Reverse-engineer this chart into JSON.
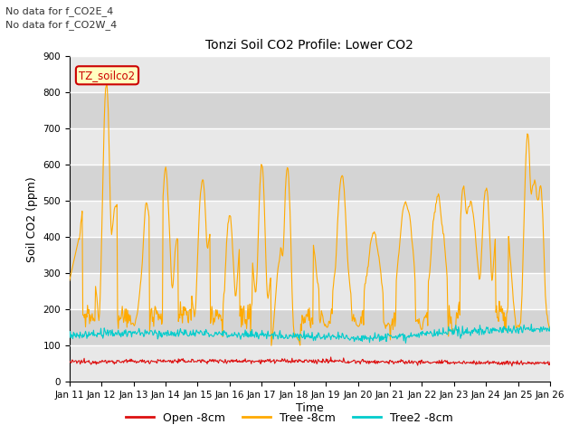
{
  "title": "Tonzi Soil CO2 Profile: Lower CO2",
  "xlabel": "Time",
  "ylabel": "Soil CO2 (ppm)",
  "ylim": [
    0,
    900
  ],
  "yticks": [
    0,
    100,
    200,
    300,
    400,
    500,
    600,
    700,
    800,
    900
  ],
  "annotation1": "No data for f_CO2E_4",
  "annotation2": "No data for f_CO2W_4",
  "legend_label": "TZ_soilco2",
  "series_labels": [
    "Open -8cm",
    "Tree -8cm",
    "Tree2 -8cm"
  ],
  "series_colors": [
    "#dd1111",
    "#ffaa00",
    "#00cccc"
  ],
  "fig_bg_color": "#ffffff",
  "plot_bg_color": "#d8d8d8",
  "band_colors": [
    "#e8e8e8",
    "#d0d0d0"
  ],
  "n_points": 720,
  "x_start": 0,
  "x_end": 15,
  "xtick_labels": [
    "Jan 11",
    "Jan 12",
    "Jan 13",
    "Jan 14",
    "Jan 15",
    "Jan 16",
    "Jan 17",
    "Jan 18",
    "Jan 19",
    "Jan 20",
    "Jan 21",
    "Jan 22",
    "Jan 23",
    "Jan 24",
    "Jan 25",
    "Jan 26"
  ],
  "xtick_positions": [
    0.0,
    1.0,
    2.0,
    3.0,
    4.0,
    5.0,
    6.0,
    7.0,
    8.0,
    9.0,
    10.0,
    11.0,
    12.0,
    13.0,
    14.0,
    15.0
  ]
}
